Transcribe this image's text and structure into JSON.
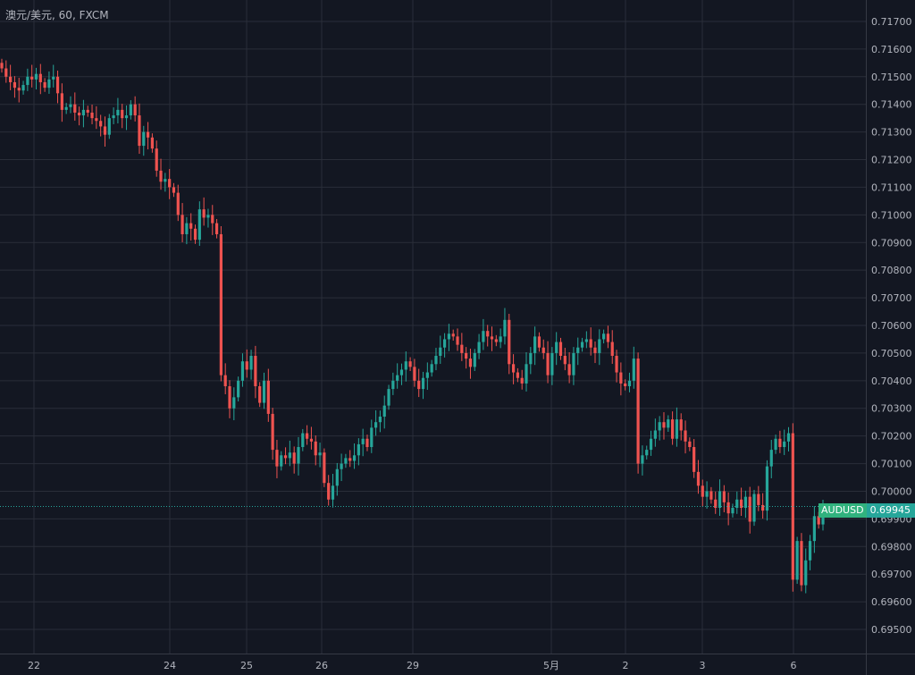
{
  "header": {
    "title": "澳元/美元, 60, FXCM"
  },
  "price_label": {
    "symbol": "AUDUSD",
    "value": "0.69945"
  },
  "colors": {
    "background": "#131722",
    "grid": "#2a2e39",
    "up": "#26a69a",
    "down": "#ef5350",
    "text": "#b2b5be"
  },
  "chart_data": {
    "type": "candlestick",
    "y_ticks": [
      "0.71700",
      "0.71600",
      "0.71500",
      "0.71400",
      "0.71300",
      "0.71200",
      "0.71100",
      "0.71000",
      "0.70900",
      "0.70800",
      "0.70700",
      "0.70600",
      "0.70500",
      "0.70400",
      "0.70300",
      "0.70200",
      "0.70100",
      "0.70000",
      "0.69900",
      "0.69800",
      "0.69700",
      "0.69600",
      "0.69500"
    ],
    "ylim": [
      0.6945,
      0.7175
    ],
    "x_ticks": [
      "22",
      "24",
      "25",
      "26",
      "29",
      "5月",
      "2",
      "3",
      "6"
    ],
    "last_price": 0.69945,
    "closes": [
      0.7153,
      0.715,
      0.7148,
      0.7146,
      0.7145,
      0.7147,
      0.715,
      0.7149,
      0.7151,
      0.7148,
      0.7146,
      0.7149,
      0.715,
      0.7144,
      0.7138,
      0.7139,
      0.714,
      0.7137,
      0.7136,
      0.7138,
      0.7137,
      0.7135,
      0.7134,
      0.7132,
      0.7129,
      0.7135,
      0.7136,
      0.7138,
      0.7135,
      0.7136,
      0.714,
      0.7136,
      0.7125,
      0.713,
      0.7128,
      0.7124,
      0.7116,
      0.7112,
      0.7113,
      0.711,
      0.7108,
      0.71,
      0.7093,
      0.7097,
      0.7095,
      0.7091,
      0.7102,
      0.7099,
      0.71,
      0.7097,
      0.7093,
      0.7042,
      0.7038,
      0.703,
      0.7034,
      0.704,
      0.7047,
      0.7044,
      0.7049,
      0.7038,
      0.7032,
      0.704,
      0.7028,
      0.7015,
      0.7009,
      0.7013,
      0.7012,
      0.7014,
      0.701,
      0.7016,
      0.7021,
      0.7019,
      0.7018,
      0.7013,
      0.7014,
      0.7003,
      0.6997,
      0.7002,
      0.7008,
      0.701,
      0.7012,
      0.7011,
      0.7013,
      0.7017,
      0.7019,
      0.7016,
      0.7023,
      0.7025,
      0.7027,
      0.7031,
      0.7037,
      0.704,
      0.7042,
      0.7044,
      0.7047,
      0.7045,
      0.704,
      0.7037,
      0.7041,
      0.7043,
      0.7046,
      0.7049,
      0.7052,
      0.7055,
      0.7057,
      0.7056,
      0.7053,
      0.705,
      0.7048,
      0.7045,
      0.705,
      0.7054,
      0.7058,
      0.7056,
      0.7055,
      0.7054,
      0.7056,
      0.7062,
      0.7046,
      0.7043,
      0.7041,
      0.7039,
      0.7046,
      0.705,
      0.7056,
      0.7052,
      0.705,
      0.7042,
      0.705,
      0.7054,
      0.7049,
      0.7046,
      0.7042,
      0.705,
      0.7052,
      0.7054,
      0.7055,
      0.7052,
      0.705,
      0.7055,
      0.7057,
      0.7054,
      0.7049,
      0.7043,
      0.7039,
      0.7038,
      0.704,
      0.7048,
      0.701,
      0.7013,
      0.7015,
      0.7019,
      0.7022,
      0.7025,
      0.7023,
      0.7026,
      0.7019,
      0.7026,
      0.7022,
      0.7018,
      0.7016,
      0.7007,
      0.7002,
      0.6998,
      0.7,
      0.6997,
      0.6994,
      0.7,
      0.6996,
      0.6992,
      0.6994,
      0.6997,
      0.6994,
      0.6998,
      0.6989,
      0.6999,
      0.6995,
      0.6993,
      0.7009,
      0.7015,
      0.7019,
      0.7016,
      0.7018,
      0.7021,
      0.6968,
      0.6982,
      0.6966,
      0.6975,
      0.6982,
      0.6991,
      0.6988,
      0.6994
    ]
  }
}
